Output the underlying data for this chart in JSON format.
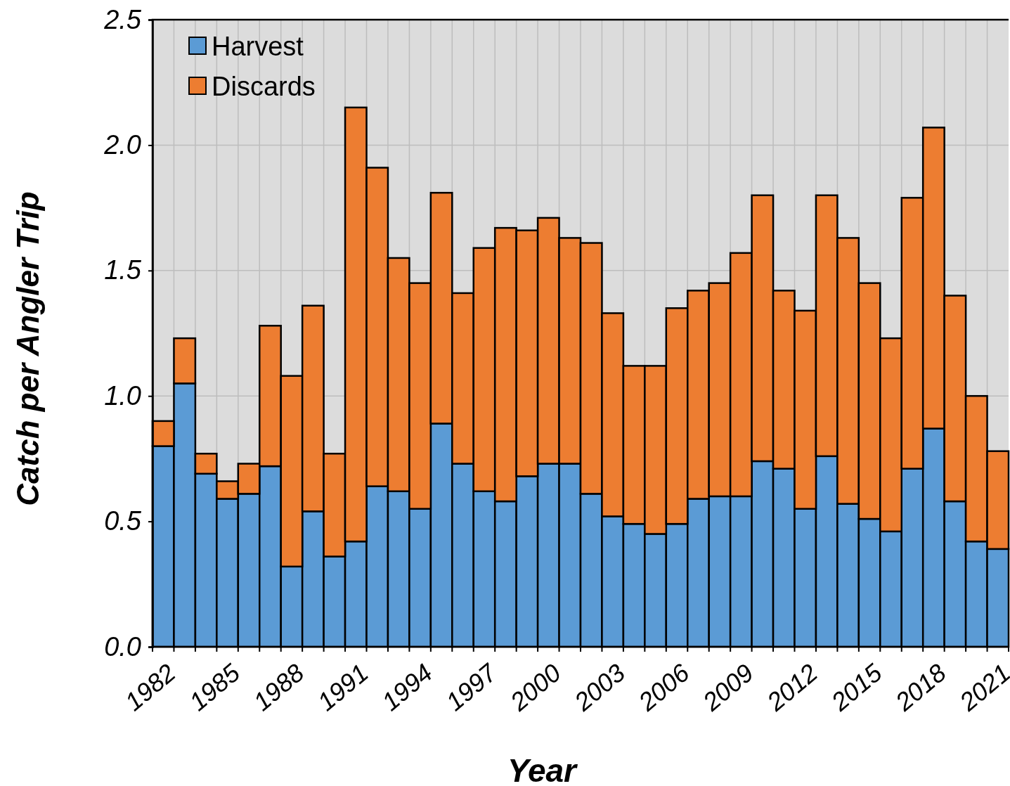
{
  "chart_data": {
    "type": "bar",
    "stacked": true,
    "xlabel": "Year",
    "ylabel": "Catch per Angler Trip",
    "categories": [
      "1982",
      null,
      null,
      "1985",
      null,
      null,
      "1988",
      null,
      null,
      "1991",
      null,
      null,
      "1994",
      null,
      null,
      "1997",
      null,
      null,
      "2000",
      null,
      null,
      "2003",
      null,
      null,
      "2006",
      null,
      null,
      "2009",
      null,
      null,
      "2012",
      null,
      null,
      "2015",
      null,
      null,
      "2018",
      null,
      null,
      "2021"
    ],
    "series": [
      {
        "name": "Harvest",
        "color": "#5b9bd5",
        "values": [
          0.8,
          1.05,
          0.69,
          0.59,
          0.61,
          0.72,
          0.32,
          0.54,
          0.36,
          0.42,
          0.64,
          0.62,
          0.55,
          0.89,
          0.73,
          0.62,
          0.58,
          0.68,
          0.73,
          0.73,
          0.61,
          0.52,
          0.49,
          0.45,
          0.49,
          0.59,
          0.6,
          0.6,
          0.74,
          0.71,
          0.55,
          0.76,
          0.57,
          0.51,
          0.46,
          0.71,
          0.87,
          0.58,
          0.42,
          0.39
        ]
      },
      {
        "name": "Discards",
        "color": "#ed7d31",
        "values": [
          0.1,
          0.18,
          0.08,
          0.07,
          0.12,
          0.56,
          0.76,
          0.82,
          0.41,
          1.73,
          1.27,
          0.93,
          0.9,
          0.92,
          0.68,
          0.97,
          1.09,
          0.98,
          0.98,
          0.9,
          1.0,
          0.81,
          0.63,
          0.67,
          0.86,
          0.83,
          0.85,
          0.97,
          1.06,
          0.71,
          0.79,
          1.04,
          1.06,
          0.94,
          0.77,
          1.08,
          1.2,
          0.82,
          0.58,
          0.39
        ]
      }
    ],
    "ylim": [
      0,
      2.5
    ],
    "yticks": [
      {
        "value": 0,
        "label": "0.0"
      },
      {
        "value": 0.5,
        "label": "0.5"
      },
      {
        "value": 1,
        "label": "1.0"
      },
      {
        "value": 1.5,
        "label": "1.5"
      },
      {
        "value": 2,
        "label": "2.0"
      },
      {
        "value": 2.5,
        "label": "2.5"
      }
    ],
    "grid": true,
    "legend": "top left"
  }
}
